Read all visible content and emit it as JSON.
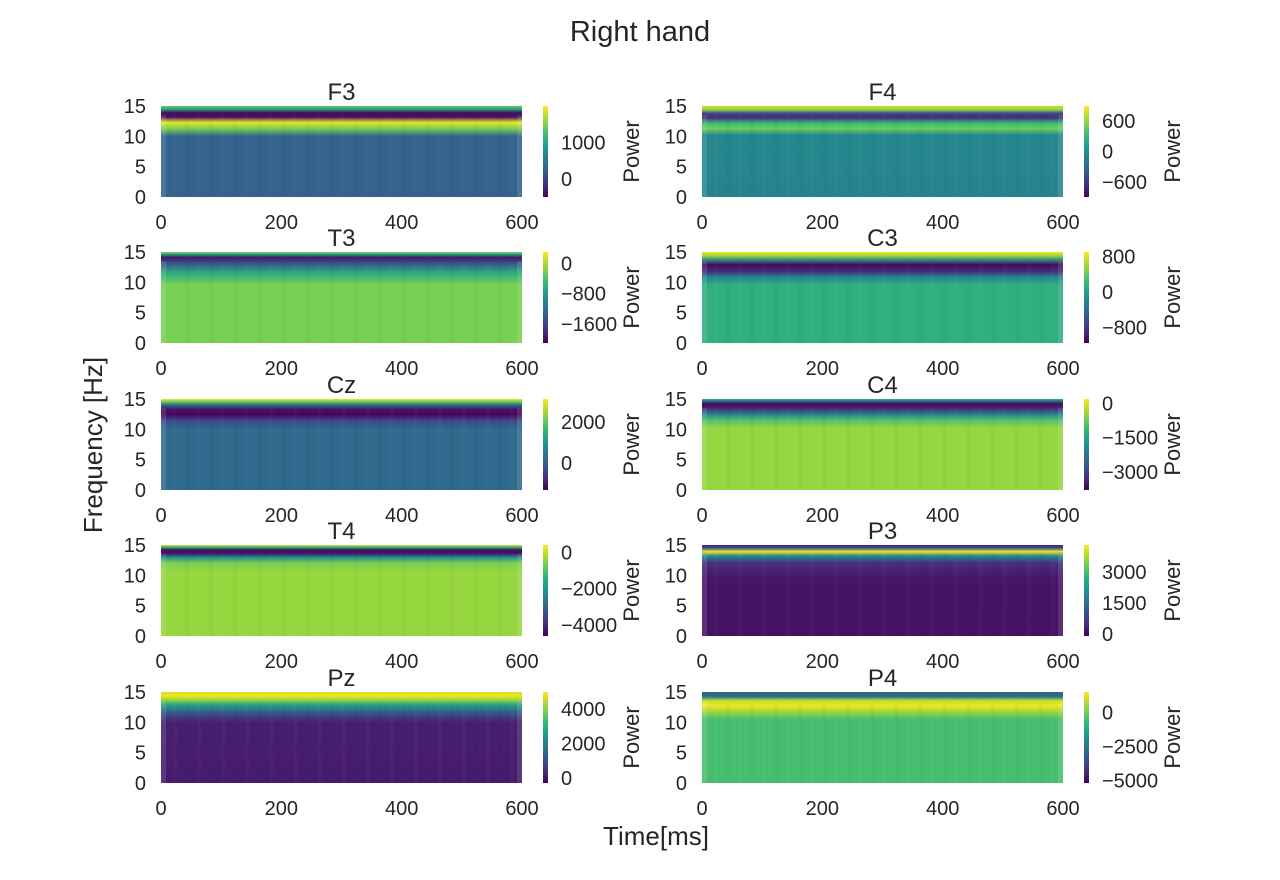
{
  "title": "Right hand",
  "xlabel": "Time[ms]",
  "ylabel": "Frequency [Hz]",
  "colorbar_label": "Power",
  "colormap": "viridis",
  "chart_data": [
    {
      "type": "heatmap",
      "title": "F3",
      "xlim": [
        0,
        600
      ],
      "ylim": [
        0,
        15
      ],
      "xticks": [
        "0",
        "200",
        "400",
        "600"
      ],
      "yticks": [
        "0",
        "5",
        "10",
        "15"
      ],
      "clim": [
        -500,
        2000
      ],
      "cticks": [
        {
          "label": "1000",
          "value": 1000
        },
        {
          "label": "0",
          "value": 0
        }
      ],
      "bands": [
        [
          0,
          280
        ],
        [
          10,
          280
        ],
        [
          11.3,
          1500
        ],
        [
          12.3,
          1900
        ],
        [
          13.2,
          -400
        ],
        [
          13.9,
          -400
        ],
        [
          14.5,
          1000
        ],
        [
          15,
          1400
        ]
      ]
    },
    {
      "type": "heatmap",
      "title": "F4",
      "xlim": [
        0,
        600
      ],
      "ylim": [
        0,
        15
      ],
      "xticks": [
        "0",
        "200",
        "400",
        "600"
      ],
      "yticks": [
        "0",
        "5",
        "10",
        "15"
      ],
      "clim": [
        -900,
        900
      ],
      "cticks": [
        {
          "label": "600",
          "value": 600
        },
        {
          "label": "0",
          "value": 0
        },
        {
          "label": "−600",
          "value": -600
        }
      ],
      "bands": [
        [
          0,
          -90
        ],
        [
          10.2,
          -60
        ],
        [
          11.3,
          500
        ],
        [
          12.2,
          300
        ],
        [
          13.1,
          -700
        ],
        [
          13.8,
          -500
        ],
        [
          14.4,
          600
        ],
        [
          15,
          750
        ]
      ]
    },
    {
      "type": "heatmap",
      "title": "T3",
      "xlim": [
        0,
        600
      ],
      "ylim": [
        0,
        15
      ],
      "xticks": [
        "0",
        "200",
        "400",
        "600"
      ],
      "yticks": [
        "0",
        "5",
        "10",
        "15"
      ],
      "clim": [
        -2100,
        300
      ],
      "cticks": [
        {
          "label": "0",
          "value": 0
        },
        {
          "label": "−800",
          "value": -800
        },
        {
          "label": "−1600",
          "value": -1600
        }
      ],
      "bands": [
        [
          0,
          -200
        ],
        [
          9.5,
          -200
        ],
        [
          11.5,
          -600
        ],
        [
          13,
          -1400
        ],
        [
          14.1,
          -1950
        ],
        [
          14.6,
          -800
        ],
        [
          15,
          -100
        ]
      ]
    },
    {
      "type": "heatmap",
      "title": "C3",
      "xlim": [
        0,
        600
      ],
      "ylim": [
        0,
        15
      ],
      "xticks": [
        "0",
        "200",
        "400",
        "600"
      ],
      "yticks": [
        "0",
        "5",
        "10",
        "15"
      ],
      "clim": [
        -1150,
        900
      ],
      "cticks": [
        {
          "label": "800",
          "value": 800
        },
        {
          "label": "0",
          "value": 0
        },
        {
          "label": "−800",
          "value": -800
        }
      ],
      "bands": [
        [
          0,
          150
        ],
        [
          9.5,
          150
        ],
        [
          10.8,
          -200
        ],
        [
          11.8,
          -900
        ],
        [
          12.9,
          -1100
        ],
        [
          13.6,
          -300
        ],
        [
          14.4,
          600
        ],
        [
          15,
          850
        ]
      ]
    },
    {
      "type": "heatmap",
      "title": "Cz",
      "xlim": [
        0,
        600
      ],
      "ylim": [
        0,
        15
      ],
      "xticks": [
        "0",
        "200",
        "400",
        "600"
      ],
      "yticks": [
        "0",
        "5",
        "10",
        "15"
      ],
      "clim": [
        -1300,
        3100
      ],
      "cticks": [
        {
          "label": "2000",
          "value": 2000
        },
        {
          "label": "0",
          "value": 0
        }
      ],
      "bands": [
        [
          0,
          200
        ],
        [
          10,
          200
        ],
        [
          11.4,
          -300
        ],
        [
          12.4,
          -1200
        ],
        [
          13.3,
          -1100
        ],
        [
          14.1,
          500
        ],
        [
          14.6,
          2200
        ],
        [
          15,
          3000
        ]
      ]
    },
    {
      "type": "heatmap",
      "title": "C4",
      "xlim": [
        0,
        600
      ],
      "ylim": [
        0,
        15
      ],
      "xticks": [
        "0",
        "200",
        "400",
        "600"
      ],
      "yticks": [
        "0",
        "5",
        "10",
        "15"
      ],
      "clim": [
        -3800,
        200
      ],
      "cticks": [
        {
          "label": "0",
          "value": 0
        },
        {
          "label": "−1500",
          "value": -1500
        },
        {
          "label": "−3000",
          "value": -3000
        }
      ],
      "bands": [
        [
          0,
          -450
        ],
        [
          10.2,
          -450
        ],
        [
          11.4,
          -900
        ],
        [
          12.5,
          -2000
        ],
        [
          13.4,
          -3300
        ],
        [
          14.2,
          -3700
        ],
        [
          14.7,
          -2200
        ],
        [
          15,
          -1200
        ]
      ]
    },
    {
      "type": "heatmap",
      "title": "T4",
      "xlim": [
        0,
        600
      ],
      "ylim": [
        0,
        15
      ],
      "xticks": [
        "0",
        "200",
        "400",
        "600"
      ],
      "yticks": [
        "0",
        "5",
        "10",
        "15"
      ],
      "clim": [
        -4600,
        400
      ],
      "cticks": [
        {
          "label": "0",
          "value": 0
        },
        {
          "label": "−2000",
          "value": -2000
        },
        {
          "label": "−4000",
          "value": -4000
        }
      ],
      "bands": [
        [
          0,
          -400
        ],
        [
          10.5,
          -400
        ],
        [
          12,
          -600
        ],
        [
          12.9,
          -2000
        ],
        [
          13.6,
          -4300
        ],
        [
          14.2,
          -4400
        ],
        [
          14.6,
          -1500
        ],
        [
          15,
          100
        ]
      ]
    },
    {
      "type": "heatmap",
      "title": "P3",
      "xlim": [
        0,
        600
      ],
      "ylim": [
        0,
        15
      ],
      "xticks": [
        "0",
        "200",
        "400",
        "600"
      ],
      "yticks": [
        "0",
        "5",
        "10",
        "15"
      ],
      "clim": [
        -100,
        4300
      ],
      "cticks": [
        {
          "label": "3000",
          "value": 3000
        },
        {
          "label": "1500",
          "value": 1500
        },
        {
          "label": "0",
          "value": 0
        }
      ],
      "bands": [
        [
          0,
          100
        ],
        [
          9.5,
          150
        ],
        [
          12,
          500
        ],
        [
          13.2,
          2000
        ],
        [
          13.9,
          4200
        ],
        [
          14.5,
          1000
        ],
        [
          15,
          300
        ]
      ]
    },
    {
      "type": "heatmap",
      "title": "Pz",
      "xlim": [
        0,
        600
      ],
      "ylim": [
        0,
        15
      ],
      "xticks": [
        "0",
        "200",
        "400",
        "600"
      ],
      "yticks": [
        "0",
        "5",
        "10",
        "15"
      ],
      "clim": [
        -300,
        5000
      ],
      "cticks": [
        {
          "label": "4000",
          "value": 4000
        },
        {
          "label": "2000",
          "value": 2000
        },
        {
          "label": "0",
          "value": 0
        }
      ],
      "bands": [
        [
          0,
          100
        ],
        [
          10,
          150
        ],
        [
          11.8,
          1300
        ],
        [
          13,
          2900
        ],
        [
          13.8,
          4300
        ],
        [
          14.4,
          4900
        ],
        [
          15,
          4600
        ]
      ]
    },
    {
      "type": "heatmap",
      "title": "P4",
      "xlim": [
        0,
        600
      ],
      "ylim": [
        0,
        15
      ],
      "xticks": [
        "0",
        "200",
        "400",
        "600"
      ],
      "yticks": [
        "0",
        "5",
        "10",
        "15"
      ],
      "clim": [
        -5200,
        1500
      ],
      "cticks": [
        {
          "label": "0",
          "value": 0
        },
        {
          "label": "−2500",
          "value": -2500
        },
        {
          "label": "−5000",
          "value": -5000
        }
      ],
      "bands": [
        [
          0,
          -500
        ],
        [
          10.5,
          -500
        ],
        [
          11.8,
          500
        ],
        [
          12.8,
          1400
        ],
        [
          13.6,
          800
        ],
        [
          14.2,
          -2500
        ],
        [
          14.6,
          -3200
        ],
        [
          15,
          -3000
        ]
      ]
    }
  ]
}
